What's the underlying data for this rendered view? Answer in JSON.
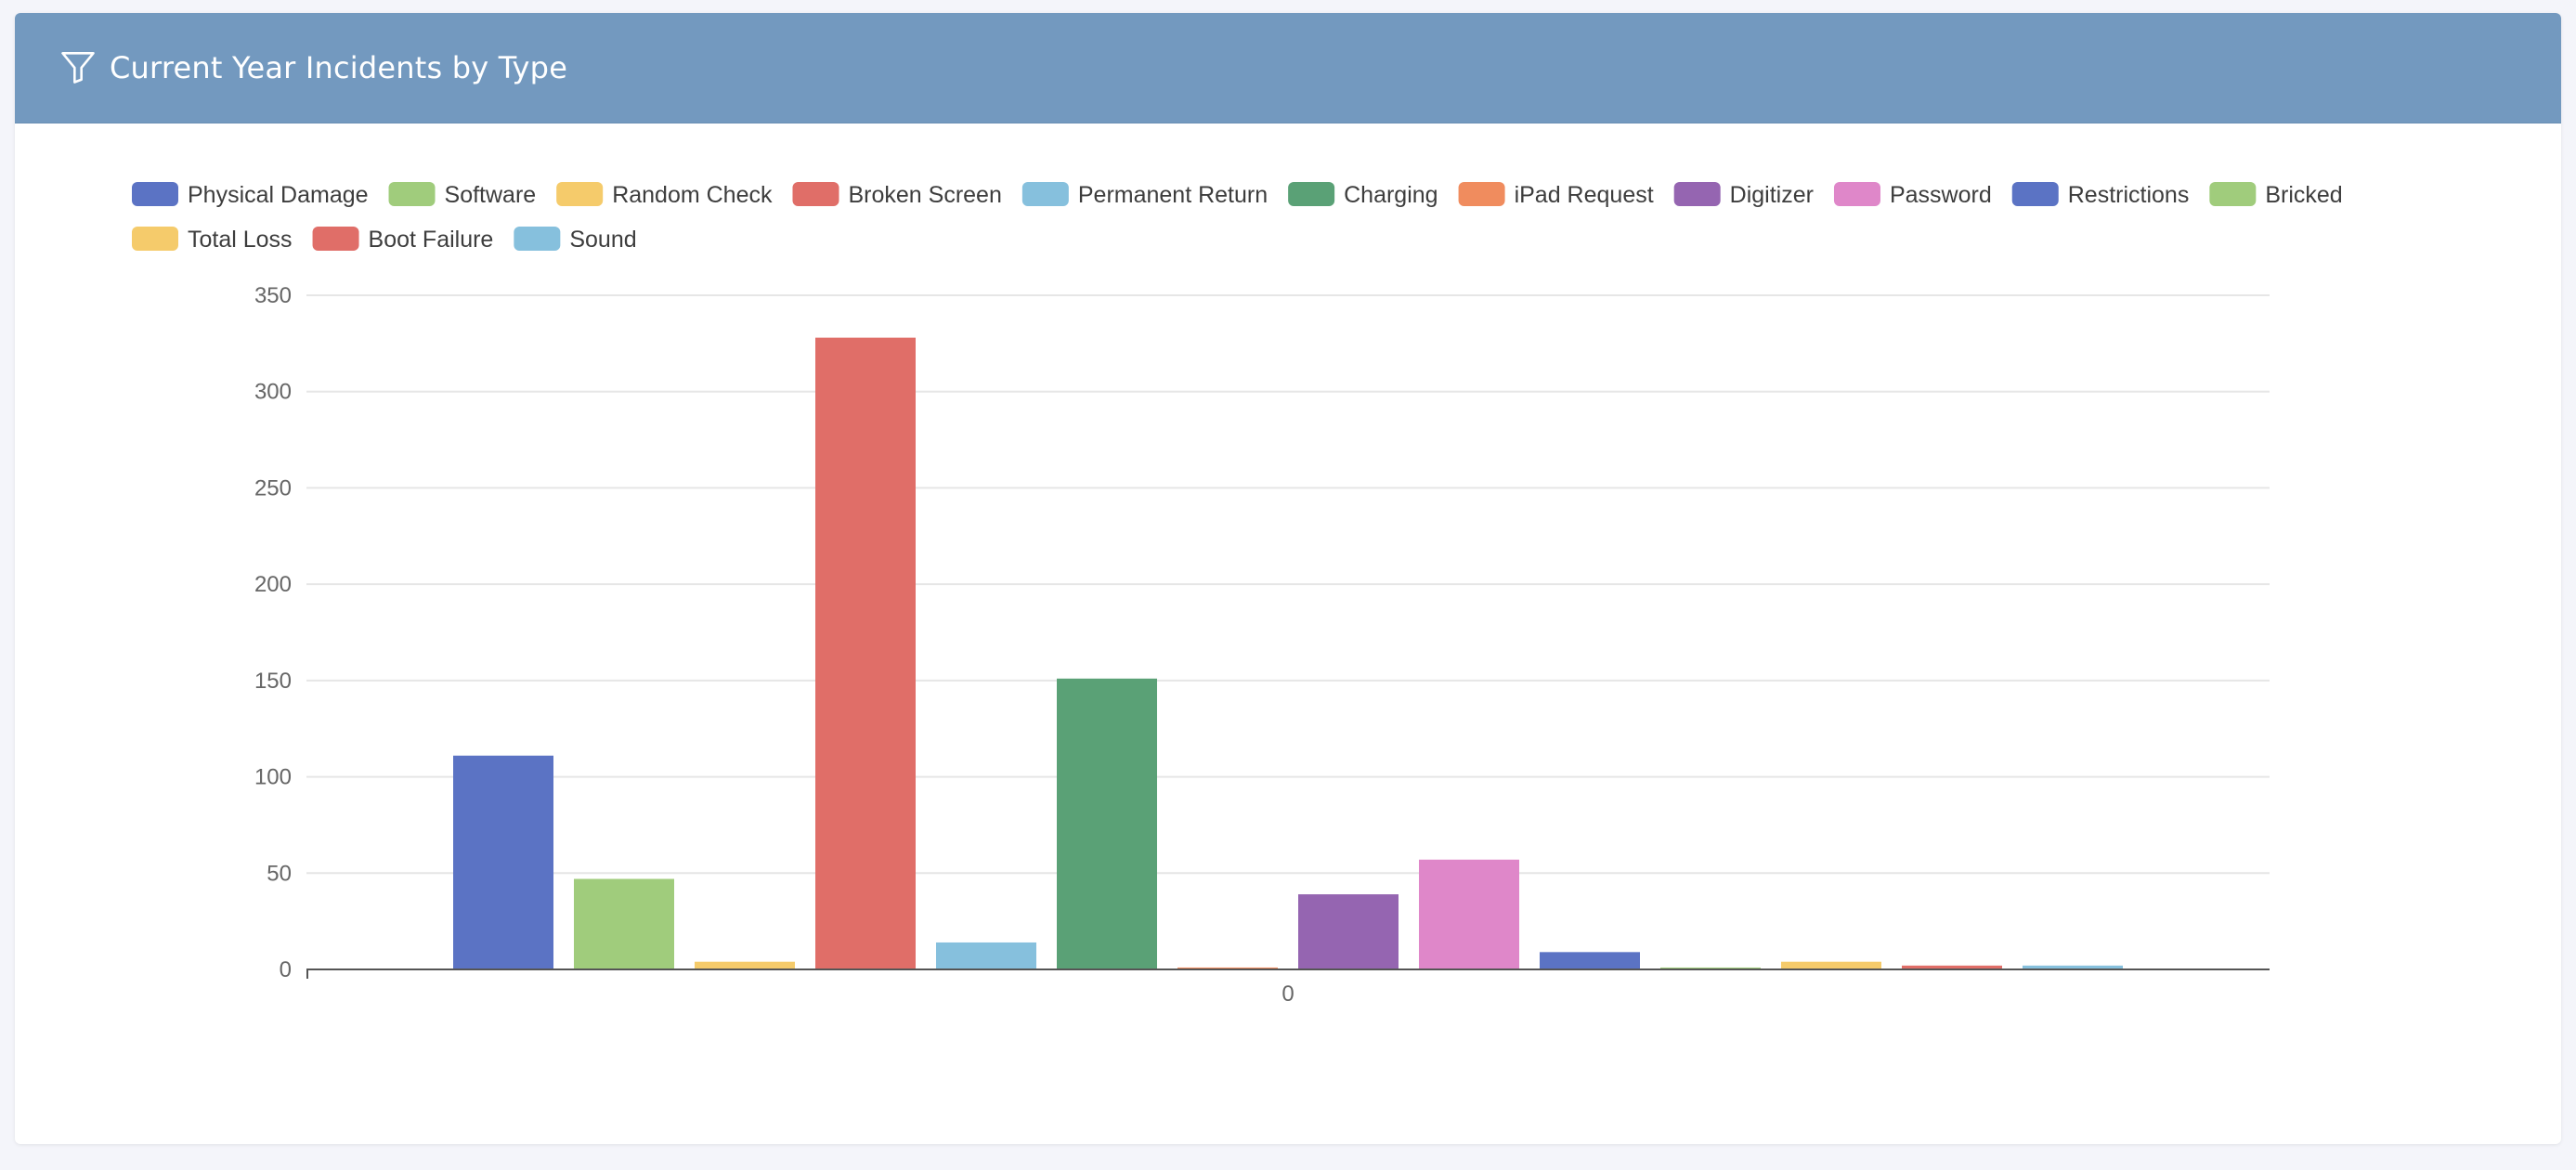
{
  "header": {
    "title": "Current Year Incidents by Type",
    "icon": "filter-icon"
  },
  "colors": {
    "header_bg": "#7399bf",
    "grid": "#e6e6e6",
    "axis": "#555555"
  },
  "chart_data": {
    "type": "bar",
    "categories": [
      "0"
    ],
    "ylim": [
      0,
      350
    ],
    "yticks": [
      0,
      50,
      100,
      150,
      200,
      250,
      300,
      350
    ],
    "grid": true,
    "legend": "top",
    "series": [
      {
        "name": "Physical Damage",
        "color": "#5b73c4",
        "values": [
          111
        ]
      },
      {
        "name": "Software",
        "color": "#a0cc7c",
        "values": [
          47
        ]
      },
      {
        "name": "Random Check",
        "color": "#f5cb6b",
        "values": [
          4
        ]
      },
      {
        "name": "Broken Screen",
        "color": "#e06e68",
        "values": [
          328
        ]
      },
      {
        "name": "Permanent Return",
        "color": "#86c0dd",
        "values": [
          14
        ]
      },
      {
        "name": "Charging",
        "color": "#5aa176",
        "values": [
          151
        ]
      },
      {
        "name": "iPad Request",
        "color": "#f08c5e",
        "values": [
          1
        ]
      },
      {
        "name": "Digitizer",
        "color": "#9565b1",
        "values": [
          39
        ]
      },
      {
        "name": "Password",
        "color": "#df87c9",
        "values": [
          57
        ]
      },
      {
        "name": "Restrictions",
        "color": "#5b73c4",
        "values": [
          9
        ]
      },
      {
        "name": "Bricked",
        "color": "#a0cc7c",
        "values": [
          1
        ]
      },
      {
        "name": "Total Loss",
        "color": "#f5cb6b",
        "values": [
          4
        ]
      },
      {
        "name": "Boot Failure",
        "color": "#e06e68",
        "values": [
          2
        ]
      },
      {
        "name": "Sound",
        "color": "#86c0dd",
        "values": [
          2
        ]
      }
    ]
  }
}
